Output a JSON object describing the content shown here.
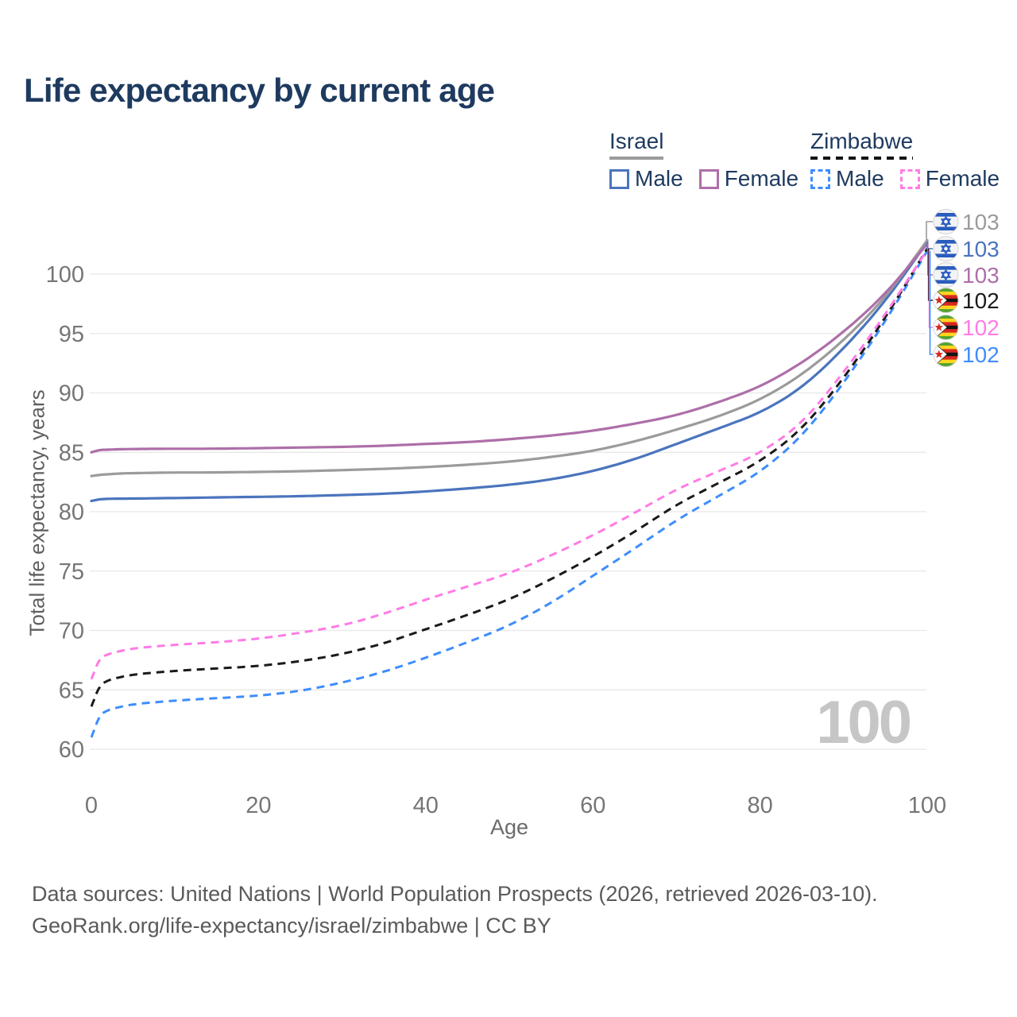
{
  "title": "Life expectancy by current age",
  "legend": {
    "israel": {
      "label": "Israel",
      "male": "Male",
      "female": "Female"
    },
    "zimbabwe": {
      "label": "Zimbabwe",
      "male": "Male",
      "female": "Female"
    }
  },
  "watermark": "100",
  "footer": {
    "line1": "Data sources: United Nations | World Population Prospects (2026, retrieved 2026-03-10).",
    "line2": "GeoRank.org/life-expectancy/israel/zimbabwe | CC BY"
  },
  "chart_data": {
    "type": "line",
    "title": "Life expectancy by current age",
    "xlabel": "Age",
    "ylabel": "Total life expectancy, years",
    "xlim": [
      0,
      100
    ],
    "ylim": [
      59,
      104
    ],
    "x_ticks": [
      0,
      20,
      40,
      60,
      80,
      100
    ],
    "y_ticks": [
      60,
      65,
      70,
      75,
      80,
      85,
      90,
      95,
      100
    ],
    "grid": "horizontal-only",
    "legend_position": "top-right",
    "colors": {
      "israel_all": "#9b9b9b",
      "israel_male": "#4b74bd",
      "israel_female": "#ad6fa8",
      "zimbabwe_all": "#1a1a1a",
      "zimbabwe_female": "#ff7be5",
      "zimbabwe_male": "#3e8dfc",
      "grid": "#e8e8e8",
      "tick_text": "#767676",
      "title_text": "#1e3a5f"
    },
    "ages": [
      0,
      1,
      2,
      3,
      5,
      10,
      15,
      20,
      25,
      30,
      35,
      40,
      45,
      50,
      55,
      60,
      65,
      70,
      75,
      80,
      85,
      90,
      95,
      100
    ],
    "series": [
      {
        "name": "Israel all",
        "country": "Israel",
        "sex": "All",
        "style": "solid",
        "color": "#9b9b9b",
        "flag": "israel",
        "end_label": "103",
        "values": [
          83.0,
          83.1,
          83.15,
          83.2,
          83.25,
          83.3,
          83.3,
          83.35,
          83.4,
          83.5,
          83.6,
          83.75,
          83.95,
          84.2,
          84.6,
          85.1,
          85.9,
          86.9,
          88.0,
          89.4,
          91.5,
          94.4,
          98.0,
          102.85
        ]
      },
      {
        "name": "Israel male",
        "country": "Israel",
        "sex": "Male",
        "style": "solid",
        "color": "#4b74bd",
        "flag": "israel",
        "end_label": "103",
        "values": [
          80.9,
          81.05,
          81.08,
          81.1,
          81.1,
          81.15,
          81.2,
          81.25,
          81.3,
          81.4,
          81.5,
          81.7,
          81.95,
          82.25,
          82.7,
          83.4,
          84.4,
          85.7,
          87.0,
          88.3,
          90.4,
          93.7,
          97.7,
          102.7
        ]
      },
      {
        "name": "Israel female",
        "country": "Israel",
        "sex": "Female",
        "style": "solid",
        "color": "#ad6fa8",
        "flag": "israel",
        "end_label": "103",
        "values": [
          85.0,
          85.2,
          85.22,
          85.25,
          85.28,
          85.3,
          85.3,
          85.35,
          85.4,
          85.45,
          85.55,
          85.7,
          85.85,
          86.1,
          86.4,
          86.8,
          87.4,
          88.1,
          89.2,
          90.5,
          92.5,
          95.1,
          98.3,
          102.55
        ]
      },
      {
        "name": "Zimbabwe all",
        "country": "Zimbabwe",
        "sex": "All",
        "style": "dashed",
        "color": "#1a1a1a",
        "flag": "zimbabwe",
        "end_label": "102",
        "values": [
          63.6,
          65.4,
          65.8,
          66.0,
          66.3,
          66.6,
          66.8,
          67.0,
          67.4,
          68.0,
          68.9,
          70.1,
          71.3,
          72.6,
          74.3,
          76.2,
          78.3,
          80.6,
          82.4,
          84.2,
          86.9,
          91.2,
          96.3,
          102.15
        ]
      },
      {
        "name": "Zimbabwe female",
        "country": "Zimbabwe",
        "sex": "Female",
        "style": "dashed",
        "color": "#ff7be5",
        "flag": "zimbabwe",
        "end_label": "102",
        "values": [
          65.9,
          67.7,
          68.0,
          68.2,
          68.5,
          68.8,
          69.0,
          69.3,
          69.8,
          70.4,
          71.4,
          72.6,
          73.7,
          74.8,
          76.3,
          78.0,
          79.9,
          81.9,
          83.4,
          84.9,
          87.4,
          91.7,
          96.6,
          102.05
        ]
      },
      {
        "name": "Zimbabwe male",
        "country": "Zimbabwe",
        "sex": "Male",
        "style": "dashed",
        "color": "#3e8dfc",
        "flag": "zimbabwe",
        "end_label": "102",
        "values": [
          61.0,
          62.9,
          63.3,
          63.5,
          63.8,
          64.1,
          64.3,
          64.5,
          64.9,
          65.6,
          66.5,
          67.7,
          69.0,
          70.4,
          72.3,
          74.6,
          76.9,
          79.3,
          81.3,
          83.3,
          86.3,
          90.8,
          96.0,
          101.95
        ]
      }
    ]
  }
}
